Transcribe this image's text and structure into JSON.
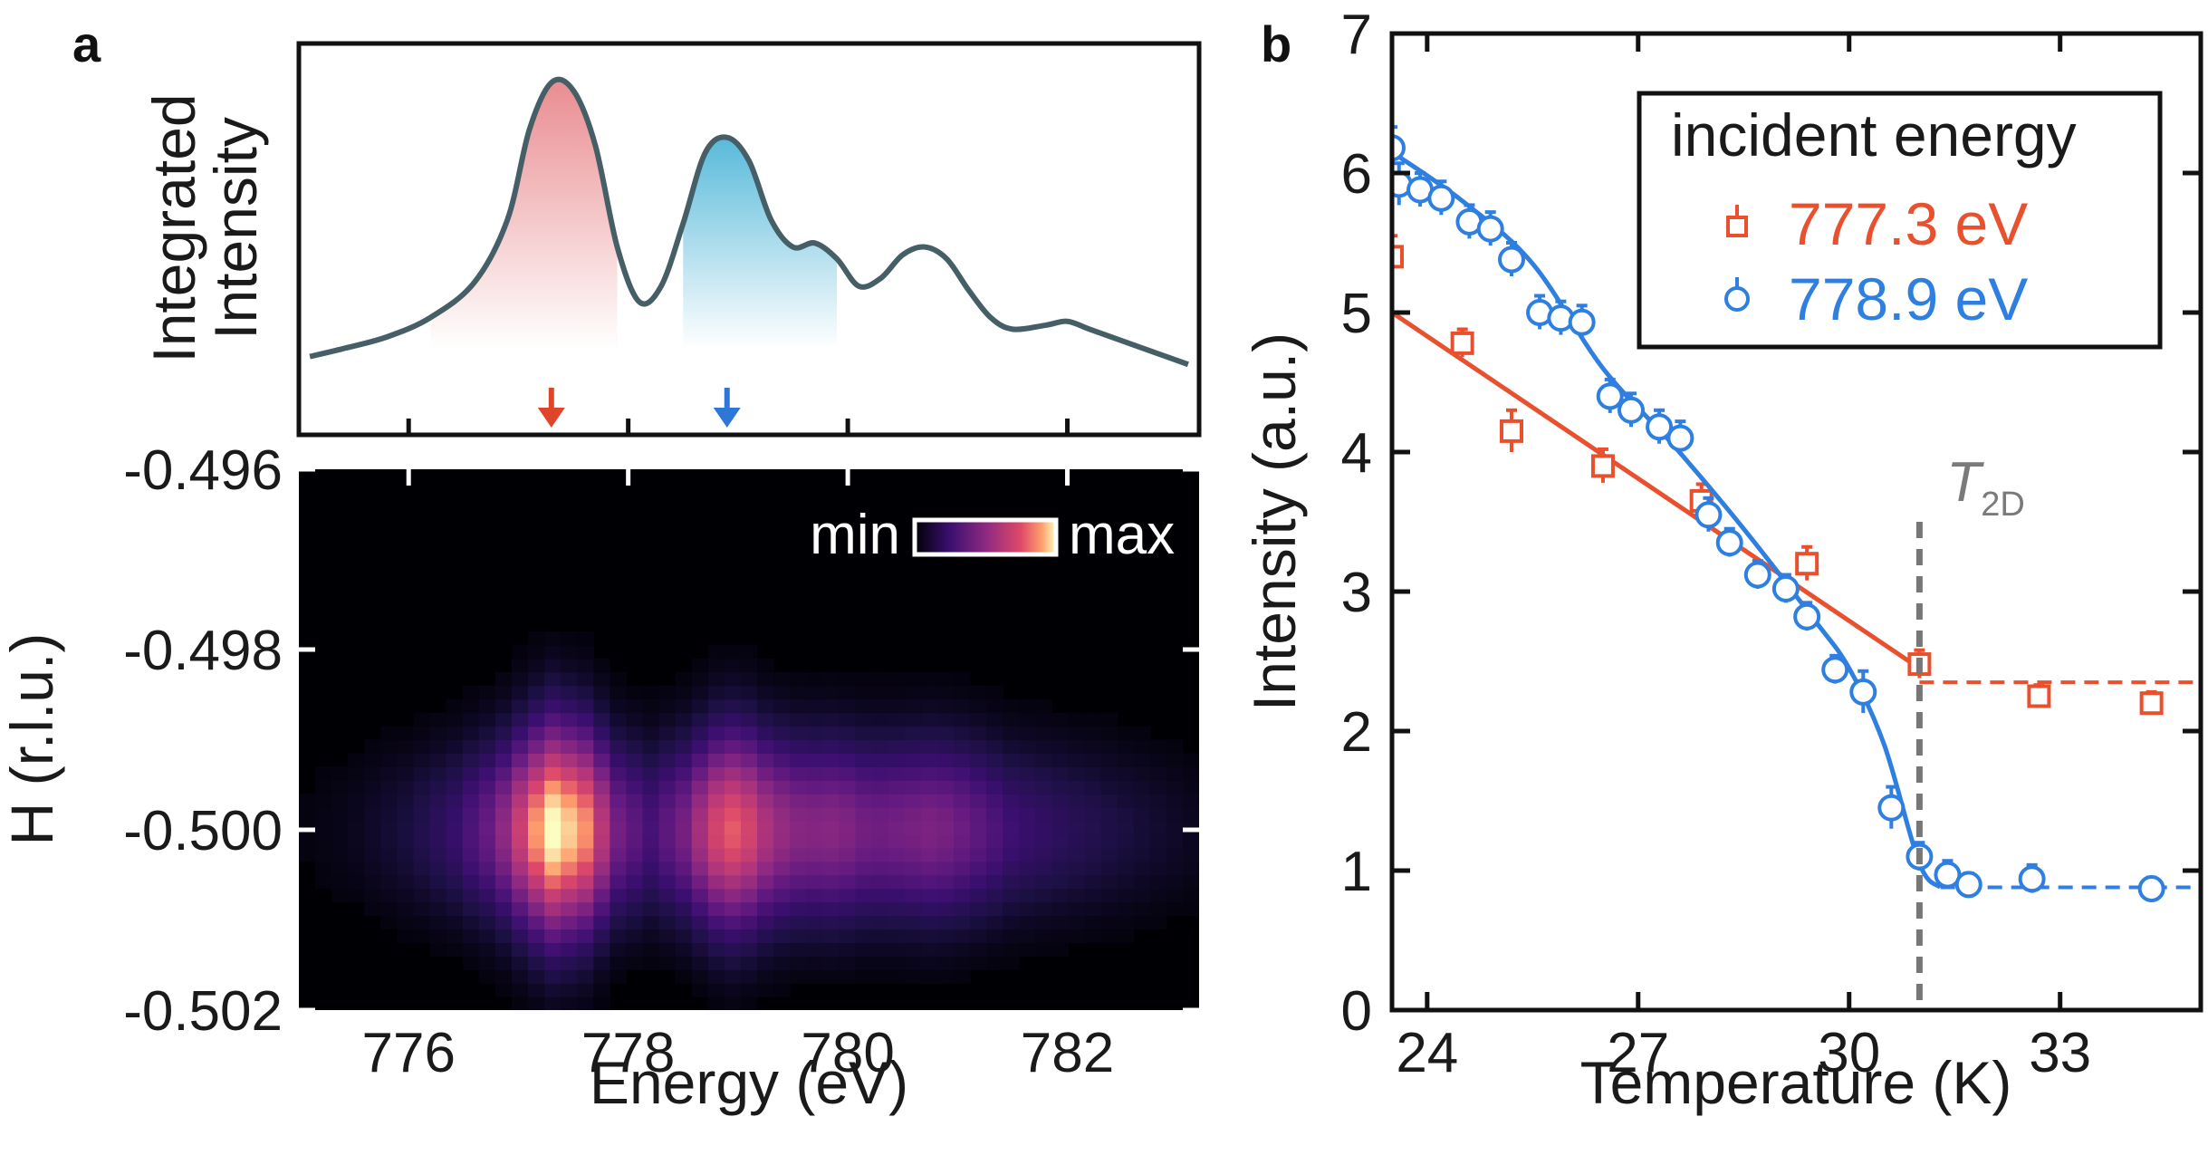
{
  "panel_a_label": "a",
  "panel_b_label": "b",
  "chart_data": [
    {
      "type": "line",
      "id": "a-top",
      "title": "",
      "ylabel_lines": [
        "Integrated",
        "Intensity"
      ],
      "xlim": [
        775,
        783.2
      ],
      "ylim": [
        0,
        1
      ],
      "x_ticks": [
        776,
        778,
        780,
        782
      ],
      "show_tick_labels": false,
      "series": [
        {
          "name": "integrated intensity",
          "color": "#465e66",
          "x": [
            775.1,
            775.4,
            775.8,
            776.2,
            776.6,
            776.9,
            777.1,
            777.3,
            777.5,
            777.7,
            777.9,
            778.1,
            778.3,
            778.5,
            778.7,
            778.9,
            779.1,
            779.3,
            779.5,
            779.7,
            779.9,
            780.1,
            780.3,
            780.5,
            780.7,
            780.9,
            781.1,
            781.3,
            781.5,
            781.8,
            782.0,
            782.2,
            782.5,
            782.8,
            783.1
          ],
          "y": [
            0.2,
            0.22,
            0.25,
            0.3,
            0.39,
            0.55,
            0.78,
            0.9,
            0.88,
            0.74,
            0.48,
            0.34,
            0.38,
            0.54,
            0.72,
            0.76,
            0.7,
            0.55,
            0.48,
            0.49,
            0.45,
            0.38,
            0.4,
            0.46,
            0.48,
            0.45,
            0.37,
            0.3,
            0.27,
            0.28,
            0.29,
            0.27,
            0.24,
            0.21,
            0.18
          ]
        }
      ],
      "highlights": [
        {
          "name": "red peak",
          "color": "#e8868a",
          "x_range": [
            776.2,
            778.0
          ]
        },
        {
          "name": "blue peak",
          "color": "#6bc3de",
          "x_range": [
            778.5,
            780.0
          ]
        }
      ],
      "arrows": [
        {
          "name": "red-arrow",
          "x": 777.3,
          "color": "#e0452b"
        },
        {
          "name": "blue-arrow",
          "x": 778.9,
          "color": "#2e77d8"
        }
      ]
    },
    {
      "type": "heatmap",
      "id": "a-bottom",
      "xlabel": "Energy (eV)",
      "ylabel": "H (r.l.u.)",
      "xlim": [
        775,
        783.2
      ],
      "ylim": [
        -0.502,
        -0.496
      ],
      "x_ticks": [
        776,
        778,
        780,
        782
      ],
      "y_ticks": [
        -0.496,
        -0.498,
        -0.5,
        -0.502
      ],
      "y_tick_labels": [
        "-0.496",
        "-0.498",
        "-0.500",
        "-0.502"
      ],
      "colorbar": {
        "min_label": "min",
        "max_label": "max"
      },
      "energy_profile": {
        "x": [
          775.0,
          775.5,
          776.0,
          776.4,
          776.8,
          777.1,
          777.3,
          777.6,
          777.9,
          778.2,
          778.5,
          778.8,
          779.0,
          779.3,
          779.6,
          779.9,
          780.2,
          780.5,
          780.8,
          781.1,
          781.5,
          782.0,
          782.5,
          783.2
        ],
        "v": [
          0.02,
          0.05,
          0.12,
          0.22,
          0.42,
          0.78,
          1.0,
          0.85,
          0.42,
          0.28,
          0.42,
          0.7,
          0.78,
          0.55,
          0.46,
          0.48,
          0.4,
          0.42,
          0.45,
          0.38,
          0.25,
          0.18,
          0.12,
          0.05
        ]
      },
      "h_center": -0.5,
      "h_width": 0.00085
    },
    {
      "type": "scatter",
      "id": "b",
      "xlabel": "Temperature (K)",
      "ylabel": "Intensity (a.u.)",
      "xlim": [
        23.5,
        35
      ],
      "ylim": [
        0,
        7
      ],
      "x_ticks": [
        24,
        27,
        30,
        33
      ],
      "y_ticks": [
        0,
        1,
        2,
        3,
        4,
        5,
        6,
        7
      ],
      "legend_title": "incident energy",
      "annotation": {
        "main": "T",
        "sub": "2D",
        "x": 31.0
      },
      "series": [
        {
          "name": "777.3 eV",
          "label_value": "777.3",
          "label_unit": "eV",
          "marker": "square",
          "color": "#e8502e",
          "x": [
            23.5,
            24.5,
            25.2,
            26.5,
            27.9,
            29.4,
            31.0,
            32.7,
            34.3
          ],
          "y": [
            5.4,
            4.78,
            4.15,
            3.9,
            3.65,
            3.2,
            2.48,
            2.25,
            2.2
          ],
          "err": [
            0.15,
            0.1,
            0.15,
            0.12,
            0.12,
            0.12,
            0.1,
            0.08,
            0.08
          ],
          "fit": [
            [
              23.5,
              5.0
            ],
            [
              31.0,
              2.45
            ]
          ],
          "fit_dashed": [
            [
              31.0,
              2.35
            ],
            [
              35.0,
              2.35
            ]
          ]
        },
        {
          "name": "778.9 eV",
          "label_value": "778.9",
          "label_unit": "eV",
          "marker": "circle",
          "color": "#2f7fe0",
          "x": [
            23.5,
            23.6,
            23.9,
            24.2,
            24.6,
            24.9,
            25.2,
            25.6,
            25.9,
            26.2,
            26.6,
            26.9,
            27.3,
            27.6,
            28.0,
            28.3,
            28.7,
            29.1,
            29.4,
            29.8,
            30.2,
            30.6,
            31.0,
            31.4,
            31.7,
            32.6,
            34.3
          ],
          "y": [
            6.18,
            5.92,
            5.88,
            5.82,
            5.65,
            5.6,
            5.38,
            5.0,
            4.96,
            4.93,
            4.4,
            4.3,
            4.18,
            4.1,
            3.55,
            3.35,
            3.12,
            3.02,
            2.82,
            2.44,
            2.28,
            1.45,
            1.1,
            0.97,
            0.9,
            0.94,
            0.87
          ],
          "err": [
            0.15,
            0.15,
            0.12,
            0.12,
            0.12,
            0.12,
            0.12,
            0.12,
            0.12,
            0.12,
            0.12,
            0.12,
            0.12,
            0.12,
            0.12,
            0.1,
            0.1,
            0.1,
            0.1,
            0.1,
            0.15,
            0.15,
            0.1,
            0.1,
            0.08,
            0.1,
            0.08
          ],
          "fit": [
            [
              23.5,
              6.15
            ],
            [
              24.5,
              5.8
            ],
            [
              25.5,
              5.35
            ],
            [
              26.5,
              4.6
            ],
            [
              27.5,
              4.05
            ],
            [
              28.5,
              3.45
            ],
            [
              29.5,
              2.8
            ],
            [
              30.0,
              2.45
            ],
            [
              30.5,
              1.9
            ],
            [
              31.0,
              1.05
            ],
            [
              31.3,
              0.88
            ]
          ],
          "fit_dashed": [
            [
              31.3,
              0.88
            ],
            [
              35.0,
              0.88
            ]
          ]
        }
      ]
    }
  ]
}
